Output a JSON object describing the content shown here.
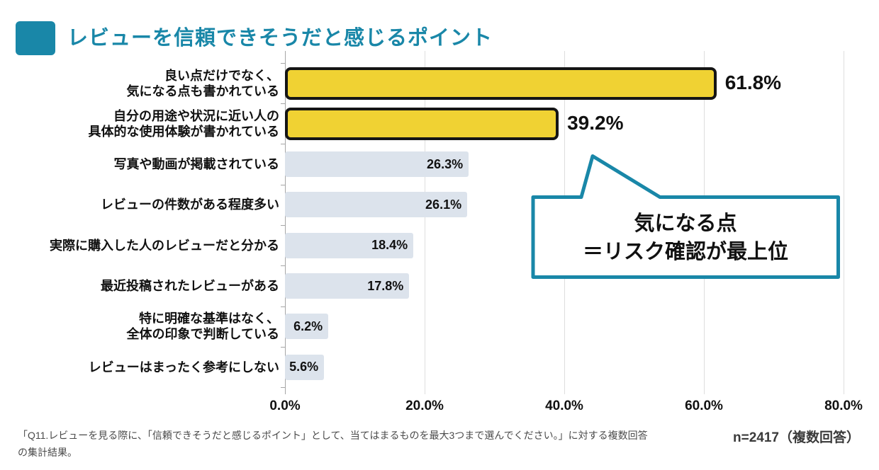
{
  "header": {
    "title": "レビューを信頼できそうだと感じるポイント"
  },
  "colors": {
    "accent_teal": "#1987A8",
    "bar_highlight_fill": "#F0D233",
    "bar_highlight_border": "#151515",
    "bar_normal_fill": "#DCE3EC",
    "value_text": "#111111"
  },
  "chart_data": {
    "type": "bar",
    "orientation": "horizontal",
    "title": "レビューを信頼できそうだと感じるポイント",
    "xlabel": "",
    "ylabel": "",
    "xlim": [
      0,
      80
    ],
    "x_tick_labels": [
      "0.0%",
      "20.0%",
      "40.0%",
      "60.0%",
      "80.0%"
    ],
    "grid": true,
    "legend": "none",
    "categories": [
      "良い点だけでなく、\n気になる点も書かれている",
      "自分の用途や状況に近い人の\n具体的な使用体験が書かれている",
      "写真や動画が掲載されている",
      "レビューの件数がある程度多い",
      "実際に購入した人のレビューだと分かる",
      "最近投稿されたレビューがある",
      "特に明確な基準はなく、\n全体の印象で判断している",
      "レビューはまったく参考にしない"
    ],
    "values": [
      61.8,
      39.2,
      26.3,
      26.1,
      18.4,
      17.8,
      6.2,
      5.6
    ],
    "value_labels": [
      "61.8%",
      "39.2%",
      "26.3%",
      "26.1%",
      "18.4%",
      "17.8%",
      "6.2%",
      "5.6%"
    ],
    "highlighted": [
      true,
      true,
      false,
      false,
      false,
      false,
      false,
      false
    ]
  },
  "callout": {
    "lines": [
      "気になる点",
      "＝リスク確認が最上位"
    ]
  },
  "footnote": {
    "line1": "「Q11.レビューを見る際に、「信頼できそうだと感じるポイント」として、当てはまるものを最大3つまで選んでください。」に対する複数回答",
    "line2": "の集計結果。",
    "sample_label": "n=2417（複数回答）"
  }
}
